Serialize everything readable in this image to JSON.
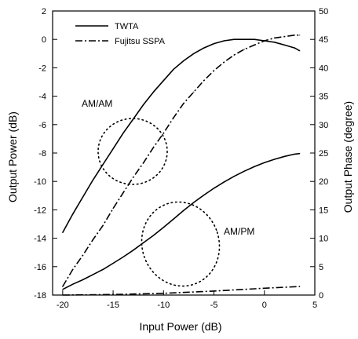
{
  "chart_data": {
    "type": "line",
    "xlabel": "Input Power (dB)",
    "ylabel": "Output Power (dB)",
    "y2label": "Output Phase (degree)",
    "xlim": [
      -21,
      5
    ],
    "ylim": [
      -18,
      2
    ],
    "y2lim": [
      0,
      50
    ],
    "x_ticks": [
      -20,
      -15,
      -10,
      -5,
      0,
      5
    ],
    "y_ticks": [
      2,
      0,
      -2,
      -4,
      -6,
      -8,
      -10,
      -12,
      -14,
      -16,
      -18
    ],
    "y2_ticks": [
      50,
      45,
      40,
      35,
      30,
      25,
      20,
      15,
      10,
      5,
      0
    ],
    "grid": false,
    "legend_position": "top-left",
    "legend": [
      {
        "label": "TWTA",
        "style": "solid"
      },
      {
        "label": "Fujitsu SSPA",
        "style": "dashdot"
      }
    ],
    "annotations": [
      {
        "text": "AM/AM",
        "x": -12.8,
        "y": -5.2
      },
      {
        "text": "AM/PM",
        "x": -2.4,
        "y": -14.8
      }
    ],
    "series": [
      {
        "legend_index": 0,
        "axis": "left",
        "style": "solid",
        "x": [
          -20,
          -19,
          -18,
          -17,
          -16,
          -15,
          -14,
          -13,
          -12,
          -11,
          -10,
          -9,
          -8,
          -7,
          -6,
          -5,
          -4,
          -3,
          -2,
          -1,
          0,
          1,
          2,
          3,
          3.5
        ],
        "values": [
          -13.6,
          -12.3,
          -11.1,
          -9.9,
          -8.8,
          -7.7,
          -6.6,
          -5.6,
          -4.6,
          -3.7,
          -2.9,
          -2.1,
          -1.5,
          -1.0,
          -0.6,
          -0.3,
          -0.1,
          0.0,
          0.0,
          0.0,
          -0.1,
          -0.2,
          -0.4,
          -0.6,
          -0.8
        ]
      },
      {
        "legend_index": 1,
        "axis": "left",
        "style": "dashdot",
        "x": [
          -20,
          -19,
          -18,
          -17,
          -16,
          -15,
          -14,
          -13,
          -12,
          -11,
          -10,
          -9,
          -8,
          -7,
          -6,
          -5,
          -4,
          -3,
          -2,
          -1,
          0,
          1,
          2,
          3,
          3.5
        ],
        "values": [
          -17.4,
          -16.2,
          -15.2,
          -14.1,
          -13.1,
          -11.9,
          -10.8,
          -9.7,
          -8.7,
          -7.6,
          -6.6,
          -5.5,
          -4.5,
          -3.7,
          -2.9,
          -2.2,
          -1.6,
          -1.1,
          -0.7,
          -0.4,
          -0.1,
          0.1,
          0.2,
          0.3,
          0.3
        ]
      },
      {
        "legend_index": 0,
        "axis": "right",
        "style": "solid",
        "x": [
          -20,
          -19,
          -18,
          -17,
          -16,
          -15,
          -14,
          -13,
          -12,
          -11,
          -10,
          -9,
          -8,
          -7,
          -6,
          -5,
          -4,
          -3,
          -2,
          -1,
          0,
          1,
          2,
          3,
          3.5
        ],
        "values": [
          1.0,
          1.9,
          2.7,
          3.6,
          4.5,
          5.6,
          6.7,
          7.9,
          9.2,
          10.5,
          11.9,
          13.4,
          14.9,
          16.3,
          17.6,
          18.8,
          19.9,
          20.9,
          21.8,
          22.6,
          23.3,
          23.9,
          24.4,
          24.8,
          24.9
        ]
      },
      {
        "legend_index": 1,
        "axis": "right",
        "style": "dashdot",
        "x": [
          -20,
          -15,
          -10,
          -5,
          0,
          3.5
        ],
        "values": [
          0.0,
          0.1,
          0.3,
          0.7,
          1.2,
          1.5
        ]
      }
    ]
  }
}
